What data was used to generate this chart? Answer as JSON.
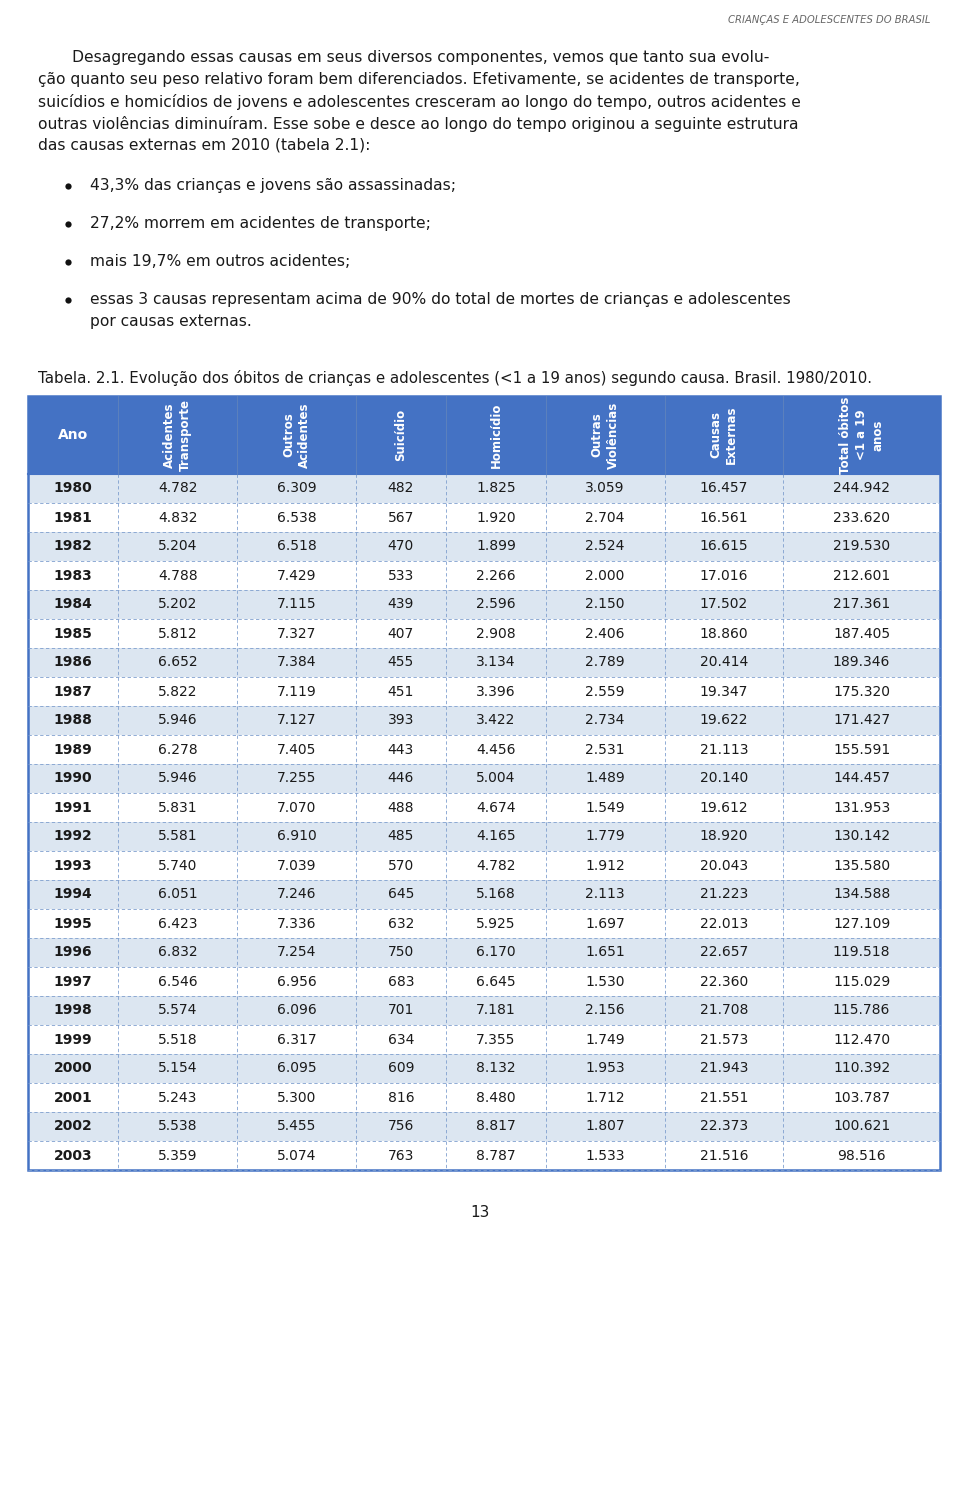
{
  "header_text": "CRIANÇAS E ADOLESCENTES DO BRASIL",
  "para_lines": [
    "       Desagregando essas causas em seus diversos componentes, vemos que tanto sua evolu-",
    "ção quanto seu peso relativo foram bem diferenciados. Efetivamente, se acidentes de transporte,",
    "suicídios e homicídios de jovens e adolescentes cresceram ao longo do tempo, outros acidentes e",
    "outras violências diminuíram. Esse sobe e desce ao longo do tempo originou a seguinte estrutura",
    "das causas externas em 2010 (tabela 2.1):"
  ],
  "bullets": [
    "43,3% das crianças e jovens são assassinadas;",
    "27,2% morrem em acidentes de transporte;",
    "mais 19,7% em outros acidentes;",
    [
      "essas 3 causas representam acima de 90% do total de mortes de crianças e adolescentes",
      "por causas externas."
    ]
  ],
  "table_title": "Tabela. 2.1. Evolução dos óbitos de crianças e adolescentes (<1 a 19 anos) segundo causa. Brasil. 1980/2010.",
  "col_headers": [
    "Ano",
    "Acidentes\nTransporte",
    "Outros\nAcidentes",
    "Suicídio",
    "Homicídio",
    "Outras\nViolências",
    "Causas\nExternas",
    "Total óbitos\n<1 a 19\nanos"
  ],
  "rows": [
    [
      "1980",
      "4.782",
      "6.309",
      "482",
      "1.825",
      "3.059",
      "16.457",
      "244.942"
    ],
    [
      "1981",
      "4.832",
      "6.538",
      "567",
      "1.920",
      "2.704",
      "16.561",
      "233.620"
    ],
    [
      "1982",
      "5.204",
      "6.518",
      "470",
      "1.899",
      "2.524",
      "16.615",
      "219.530"
    ],
    [
      "1983",
      "4.788",
      "7.429",
      "533",
      "2.266",
      "2.000",
      "17.016",
      "212.601"
    ],
    [
      "1984",
      "5.202",
      "7.115",
      "439",
      "2.596",
      "2.150",
      "17.502",
      "217.361"
    ],
    [
      "1985",
      "5.812",
      "7.327",
      "407",
      "2.908",
      "2.406",
      "18.860",
      "187.405"
    ],
    [
      "1986",
      "6.652",
      "7.384",
      "455",
      "3.134",
      "2.789",
      "20.414",
      "189.346"
    ],
    [
      "1987",
      "5.822",
      "7.119",
      "451",
      "3.396",
      "2.559",
      "19.347",
      "175.320"
    ],
    [
      "1988",
      "5.946",
      "7.127",
      "393",
      "3.422",
      "2.734",
      "19.622",
      "171.427"
    ],
    [
      "1989",
      "6.278",
      "7.405",
      "443",
      "4.456",
      "2.531",
      "21.113",
      "155.591"
    ],
    [
      "1990",
      "5.946",
      "7.255",
      "446",
      "5.004",
      "1.489",
      "20.140",
      "144.457"
    ],
    [
      "1991",
      "5.831",
      "7.070",
      "488",
      "4.674",
      "1.549",
      "19.612",
      "131.953"
    ],
    [
      "1992",
      "5.581",
      "6.910",
      "485",
      "4.165",
      "1.779",
      "18.920",
      "130.142"
    ],
    [
      "1993",
      "5.740",
      "7.039",
      "570",
      "4.782",
      "1.912",
      "20.043",
      "135.580"
    ],
    [
      "1994",
      "6.051",
      "7.246",
      "645",
      "5.168",
      "2.113",
      "21.223",
      "134.588"
    ],
    [
      "1995",
      "6.423",
      "7.336",
      "632",
      "5.925",
      "1.697",
      "22.013",
      "127.109"
    ],
    [
      "1996",
      "6.832",
      "7.254",
      "750",
      "6.170",
      "1.651",
      "22.657",
      "119.518"
    ],
    [
      "1997",
      "6.546",
      "6.956",
      "683",
      "6.645",
      "1.530",
      "22.360",
      "115.029"
    ],
    [
      "1998",
      "5.574",
      "6.096",
      "701",
      "7.181",
      "2.156",
      "21.708",
      "115.786"
    ],
    [
      "1999",
      "5.518",
      "6.317",
      "634",
      "7.355",
      "1.749",
      "21.573",
      "112.470"
    ],
    [
      "2000",
      "5.154",
      "6.095",
      "609",
      "8.132",
      "1.953",
      "21.943",
      "110.392"
    ],
    [
      "2001",
      "5.243",
      "5.300",
      "816",
      "8.480",
      "1.712",
      "21.551",
      "103.787"
    ],
    [
      "2002",
      "5.538",
      "5.455",
      "756",
      "8.817",
      "1.807",
      "22.373",
      "100.621"
    ],
    [
      "2003",
      "5.359",
      "5.074",
      "763",
      "8.787",
      "1.533",
      "21.516",
      "98.516"
    ]
  ],
  "header_bg": "#4472c4",
  "header_text_color": "#ffffff",
  "row_even_bg": "#dce6f1",
  "row_odd_bg": "#ffffff",
  "page_number": "13",
  "page_bg": "#ffffff",
  "text_color": "#1a1a1a",
  "border_color": "#4472c4"
}
